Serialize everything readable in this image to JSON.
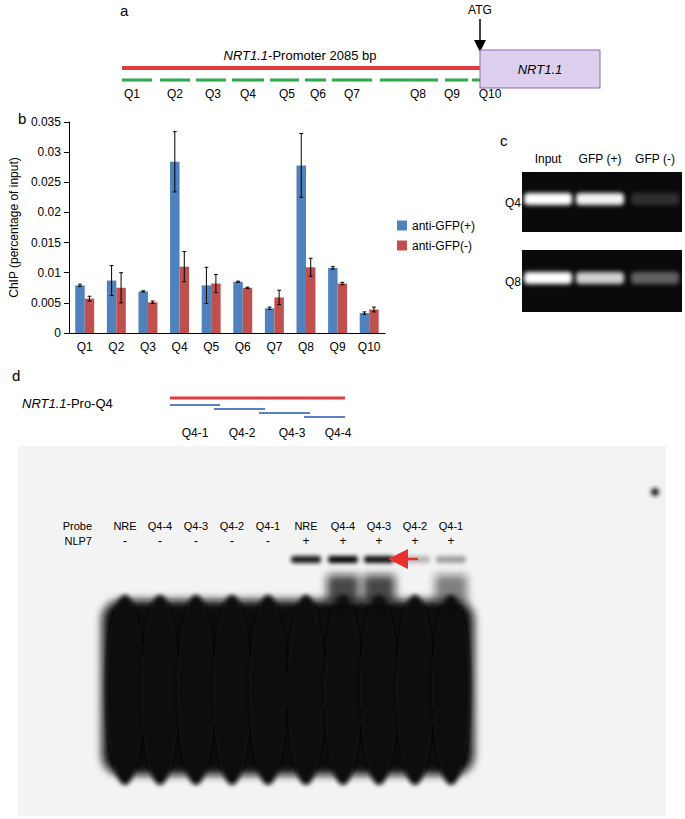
{
  "chart_data": {
    "type": "bar",
    "categories": [
      "Q1",
      "Q2",
      "Q3",
      "Q4",
      "Q5",
      "Q6",
      "Q7",
      "Q8",
      "Q9",
      "Q10"
    ],
    "series": [
      {
        "name": "anti-GFP(+)",
        "color": "#4f81bd",
        "values": [
          0.0079,
          0.0087,
          0.0069,
          0.0284,
          0.0079,
          0.0085,
          0.0041,
          0.0278,
          0.0108,
          0.0033
        ],
        "errors": [
          0.0002,
          0.0025,
          0.0001,
          0.005,
          0.003,
          0.0001,
          0.0002,
          0.0053,
          0.0002,
          0.0002
        ]
      },
      {
        "name": "anti-GFP(-)",
        "color": "#c0504d",
        "values": [
          0.0057,
          0.0075,
          0.0051,
          0.011,
          0.0082,
          0.0075,
          0.0059,
          0.0109,
          0.0082,
          0.0039
        ],
        "errors": [
          0.0004,
          0.0025,
          0.0002,
          0.0025,
          0.0015,
          0.0001,
          0.0012,
          0.0015,
          0.0002,
          0.0004
        ]
      }
    ],
    "y_label": "ChIP (percentage of input)",
    "ylim": [
      0,
      0.035
    ],
    "yticks": [
      0,
      0.005,
      0.01,
      0.015,
      0.02,
      0.025,
      0.03,
      0.035
    ],
    "grid": false,
    "legend": "right"
  },
  "panels": {
    "a": {
      "label": "a",
      "atg": "ATG",
      "gene": "NRT1.1",
      "promoter": "NRT1.1-Promoter 2085 bp",
      "segments": [
        "Q1",
        "Q2",
        "Q3",
        "Q4",
        "Q5",
        "Q6",
        "Q7",
        "Q8",
        "Q9",
        "Q10"
      ]
    },
    "b": {
      "label": "b"
    },
    "c": {
      "label": "c",
      "lanes": [
        "Input",
        "GFP (+)",
        "GFP (-)"
      ],
      "rows": [
        "Q4",
        "Q8"
      ]
    },
    "d": {
      "label": "d",
      "construct": "NRT1.1-Pro-Q4",
      "fragments": [
        "Q4-1",
        "Q4-2",
        "Q4-3",
        "Q4-4"
      ],
      "row_titles": [
        "Probe",
        "NLP7"
      ],
      "probes": [
        "NRE",
        "Q4-4",
        "Q4-3",
        "Q4-2",
        "Q4-1",
        "NRE",
        "Q4-4",
        "Q4-3",
        "Q4-2",
        "Q4-1"
      ],
      "nlp7": [
        "-",
        "-",
        "-",
        "-",
        "-",
        "+",
        "+",
        "+",
        "+",
        "+"
      ]
    }
  }
}
